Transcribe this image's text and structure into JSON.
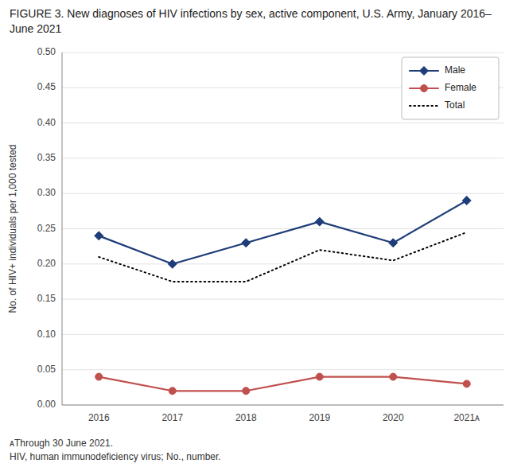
{
  "chart_data": {
    "type": "line",
    "title": "FIGURE 3. New diagnoses of HIV infections by sex, active component, U.S. Army, January 2016–June 2021",
    "y_label": "No. of HIV+ individuals per 1,000 tested",
    "categories": [
      "2016",
      "2017",
      "2018",
      "2019",
      "2020",
      "2021ᴀ"
    ],
    "series": [
      {
        "name": "Male",
        "color": "#1f3d7a",
        "marker": "diamond",
        "line_style": "solid",
        "values": [
          0.24,
          0.2,
          0.23,
          0.26,
          0.23,
          0.29
        ]
      },
      {
        "name": "Female",
        "color": "#c0504d",
        "marker": "circle",
        "line_style": "solid",
        "values": [
          0.04,
          0.02,
          0.02,
          0.04,
          0.04,
          0.03
        ]
      },
      {
        "name": "Total",
        "color": "#000000",
        "marker": "none",
        "line_style": "dotted",
        "values": [
          0.21,
          0.175,
          0.175,
          0.22,
          0.205,
          0.245
        ]
      }
    ],
    "ylim": [
      0.0,
      0.5
    ],
    "yticks": [
      {
        "value": 0.0,
        "label": "0.00"
      },
      0.05,
      {
        "value": 0.1,
        "label": "0.10"
      },
      0.15,
      {
        "value": 0.2,
        "label": "0.20"
      },
      0.25,
      {
        "value": 0.3,
        "label": "0.30"
      },
      0.35,
      {
        "value": 0.4,
        "label": "0.40"
      },
      0.45,
      {
        "value": 0.5,
        "label": "0.50"
      }
    ],
    "grid": true,
    "legend": "upper right",
    "annotations": [
      "ᴀThrough 30 June 2021.",
      "HIV, human immunodeficiency virus; No., number."
    ]
  }
}
